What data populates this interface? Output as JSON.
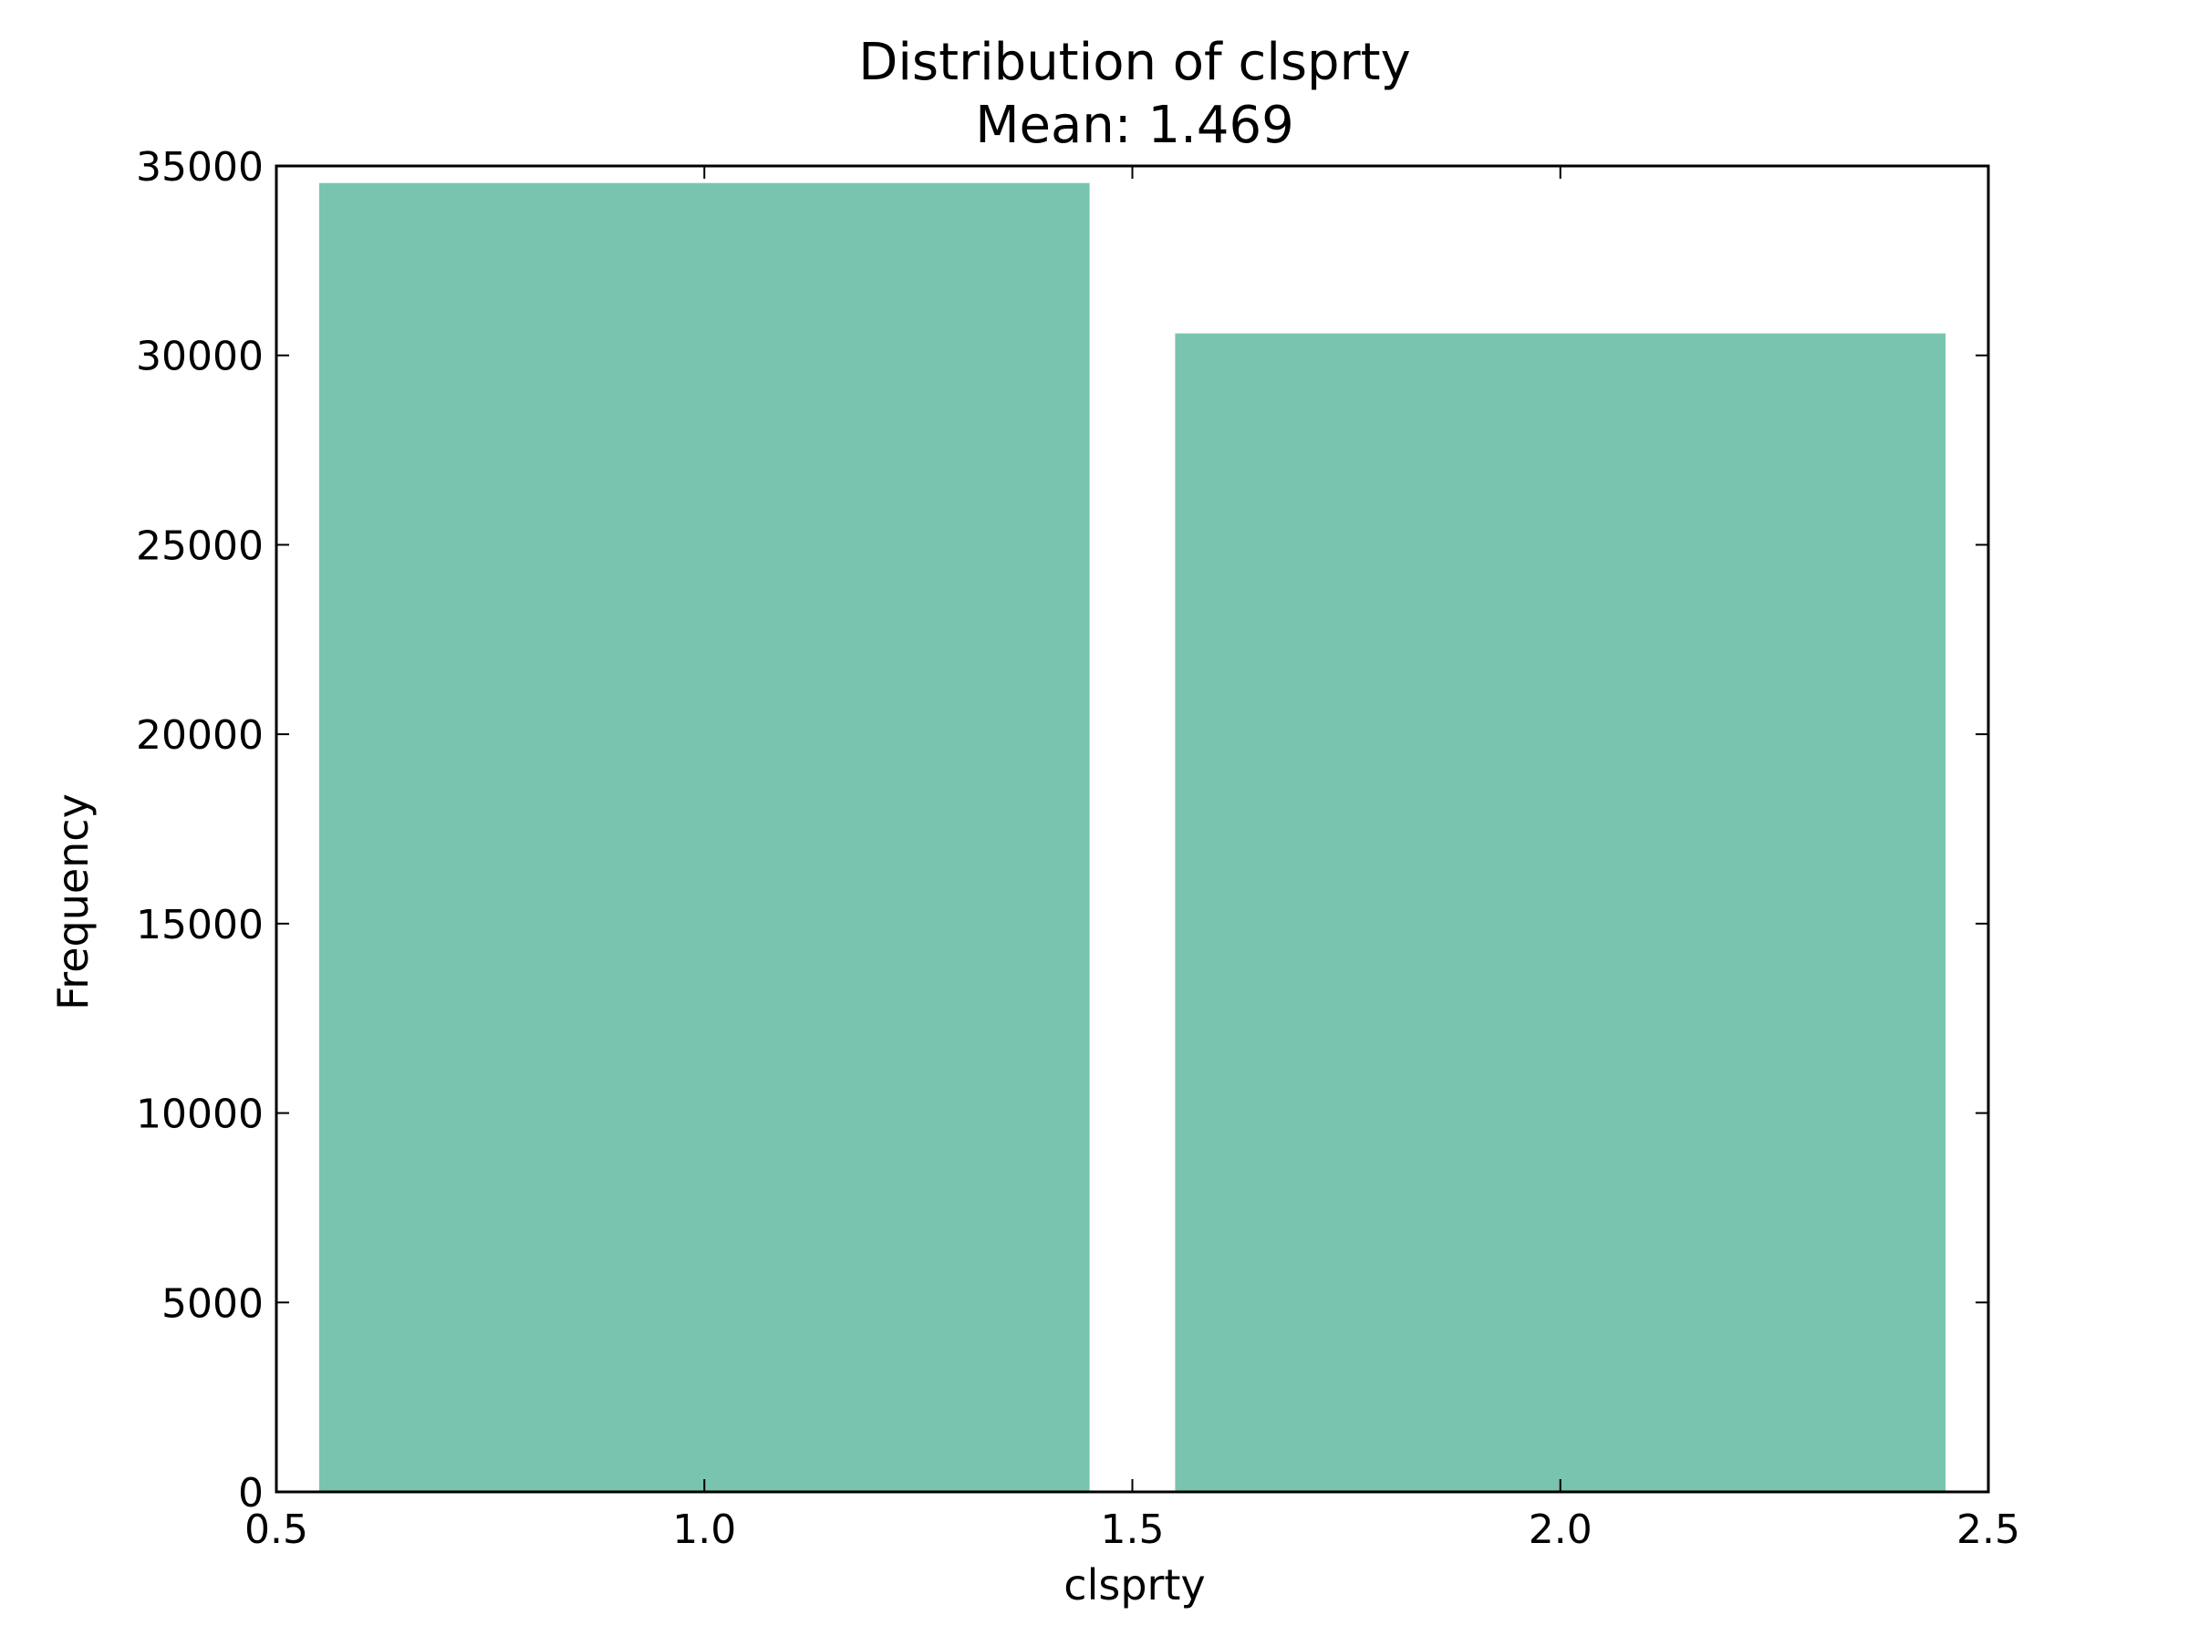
{
  "chart_data": {
    "type": "bar",
    "title": "Distribution of clsprty",
    "subtitle": "Mean: 1.469",
    "xlabel": "clsprty",
    "ylabel": "Frequency",
    "xlim": [
      0.5,
      2.5
    ],
    "ylim": [
      0,
      35000
    ],
    "xticks": [
      0.5,
      1.0,
      1.5,
      2.0,
      2.5
    ],
    "xtick_labels": [
      "0.5",
      "1.0",
      "1.5",
      "2.0",
      "2.5"
    ],
    "yticks": [
      0,
      5000,
      10000,
      15000,
      20000,
      25000,
      30000,
      35000
    ],
    "ytick_labels": [
      "0",
      "5000",
      "10000",
      "15000",
      "20000",
      "25000",
      "30000",
      "35000"
    ],
    "bars": [
      {
        "x_start": 0.55,
        "x_end": 1.45,
        "value": 34550
      },
      {
        "x_start": 1.55,
        "x_end": 2.45,
        "value": 30580
      }
    ],
    "bar_color": "#78c4ae",
    "grid": false,
    "legend": false
  }
}
